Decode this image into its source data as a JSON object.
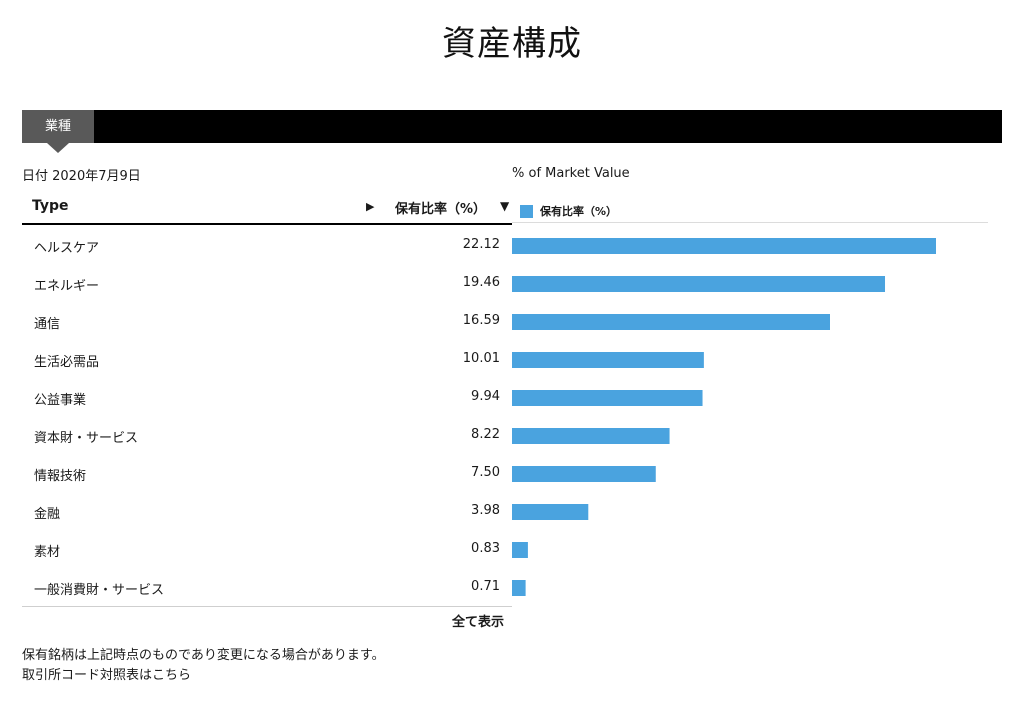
{
  "page_title": "資産構成",
  "tabs": [
    {
      "label": "業種",
      "selected": true
    }
  ],
  "date_label": "日付 2020年7月9日",
  "chart_caption": "% of Market Value",
  "table": {
    "header_type": "Type",
    "header_ratio": "保有比率（%）"
  },
  "icons": {
    "sort_play": "▶",
    "sort_down": "▼"
  },
  "legend_label": "保有比率（%）",
  "show_all": "全て表示",
  "notes": {
    "line1": "保有銘柄は上記時点のものであり変更になる場合があります。",
    "line2": "取引所コード対照表はこちら"
  },
  "colors": {
    "bar": "#4aa3df",
    "tabbar": "#000000",
    "tab_selected": "#595959"
  },
  "chart_data": {
    "type": "bar",
    "orientation": "horizontal",
    "categories": [
      "ヘルスケア",
      "エネルギー",
      "通信",
      "生活必需品",
      "公益事業",
      "資本財・サービス",
      "情報技術",
      "金融",
      "素材",
      "一般消費財・サービス"
    ],
    "values": [
      "22.12",
      "19.46",
      "16.59",
      "10.01",
      "9.94",
      "8.22",
      "7.50",
      "3.98",
      "0.83",
      "0.71"
    ],
    "series": [
      {
        "name": "保有比率（%）"
      }
    ],
    "title": "% of Market Value",
    "xlim": [
      0,
      22.12
    ],
    "grid": false,
    "legend_position": "top-left"
  }
}
